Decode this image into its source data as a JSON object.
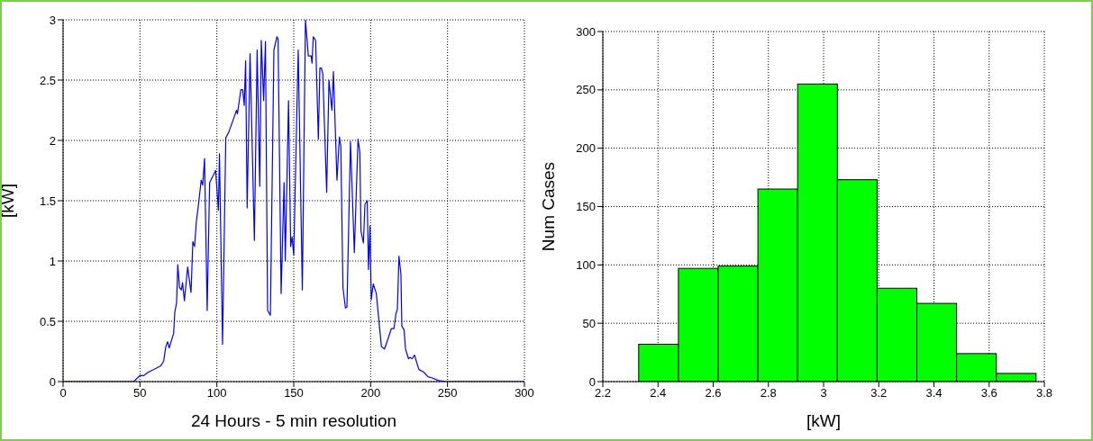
{
  "chart_data": [
    {
      "type": "line",
      "xlabel": "24 Hours - 5 min resolution",
      "ylabel": "[kW]",
      "xlim": [
        0,
        300
      ],
      "ylim": [
        0,
        3
      ],
      "xticks": [
        0,
        50,
        100,
        150,
        200,
        250,
        300
      ],
      "yticks": [
        0,
        0.5,
        1,
        1.5,
        2,
        2.5,
        3
      ],
      "grid": true,
      "marker": "none",
      "series": [
        {
          "color": "#0000ff",
          "x": [
            0,
            45.9,
            50,
            52.5,
            55.7,
            60.5,
            63.5,
            65.4,
            66.8,
            68,
            69,
            71.9,
            72.7,
            73.8,
            74.6,
            75.7,
            76.9,
            77.7,
            78.9,
            81,
            83.2,
            84.4,
            85.5,
            86.7,
            87.9,
            89.8,
            90.8,
            92,
            93.7,
            95.3,
            99.2,
            101,
            101.7,
            103.7,
            105.8,
            107.8,
            110.9,
            112.8,
            113.4,
            115.6,
            116.8,
            117.8,
            118.7,
            119.7,
            121.6,
            124.4,
            126.2,
            127.9,
            128.9,
            130.4,
            131.6,
            133,
            134.8,
            137.1,
            139.1,
            139.8,
            141.8,
            143.7,
            144.5,
            146.6,
            148,
            148.9,
            150,
            152.9,
            155.6,
            157.6,
            159.5,
            161.3,
            161.9,
            162.7,
            164.2,
            166,
            167,
            168,
            168.9,
            171.4,
            172.9,
            174.8,
            175.8,
            178.1,
            179.7,
            180.6,
            182,
            183.6,
            184.6,
            186.9,
            189.4,
            191.8,
            193,
            193.7,
            195.3,
            196.3,
            197.8,
            198.6,
            199.6,
            200.4,
            201.7,
            203.7,
            207,
            209,
            210.9,
            213.5,
            215.2,
            216.4,
            217.4,
            218.4,
            219.7,
            220.3,
            221.7,
            222.7,
            224.6,
            225.6,
            227,
            228.5,
            231.4,
            234.4,
            237.3,
            240.2,
            243.8,
            248.8,
            300
          ],
          "values": [
            0,
            0,
            0.05,
            0.05,
            0.08,
            0.11,
            0.13,
            0.17,
            0.29,
            0.33,
            0.28,
            0.4,
            0.58,
            0.65,
            0.97,
            0.78,
            0.76,
            0.82,
            0.67,
            0.95,
            0.74,
            1.16,
            1.12,
            1.33,
            1.45,
            1.67,
            1.63,
            1.85,
            0.59,
            1.65,
            1.75,
            1.42,
            1.89,
            0.31,
            2.02,
            2.07,
            2.18,
            2.25,
            2.22,
            2.42,
            2.42,
            2.29,
            2.66,
            1.44,
            2.72,
            1.17,
            2.75,
            1.62,
            2.83,
            2.33,
            2.82,
            0.59,
            0.55,
            2.75,
            2.86,
            2.84,
            0.73,
            1.65,
            1,
            2.33,
            1.12,
            1.2,
            1.05,
            2.75,
            0.76,
            3,
            2.7,
            2.7,
            2.64,
            2.86,
            2.83,
            2.01,
            2.6,
            2.6,
            2.55,
            1.57,
            2.5,
            2.25,
            2.57,
            1.67,
            2.03,
            1.95,
            0.78,
            0.61,
            0.62,
            1.99,
            1.07,
            2.01,
            1.9,
            1.25,
            1.15,
            1.47,
            1.5,
            0.93,
            1.29,
            0.68,
            0.81,
            0.73,
            0.29,
            0.27,
            0.34,
            0.44,
            0.44,
            0.56,
            0.6,
            1.04,
            0.89,
            0.46,
            0.43,
            0.27,
            0.19,
            0.2,
            0.19,
            0.22,
            0.1,
            0.08,
            0.04,
            0.03,
            0.01,
            0,
            0
          ]
        }
      ]
    },
    {
      "type": "histogram",
      "xlabel": "[kW]",
      "ylabel": "Num Cases",
      "xlim": [
        2.2,
        3.8
      ],
      "ylim": [
        0,
        300
      ],
      "xticks": [
        2.2,
        2.4,
        2.6,
        2.8,
        3,
        3.2,
        3.4,
        3.6,
        3.8
      ],
      "yticks": [
        0,
        50,
        100,
        150,
        200,
        250,
        300
      ],
      "grid": true,
      "color": "#00ff00",
      "bins": [
        2.33,
        2.474,
        2.618,
        2.762,
        2.906,
        3.05,
        3.194,
        3.338,
        3.482,
        3.626,
        3.77
      ],
      "values": [
        32,
        97,
        99,
        165,
        255,
        173,
        80,
        67,
        24,
        7
      ]
    }
  ]
}
